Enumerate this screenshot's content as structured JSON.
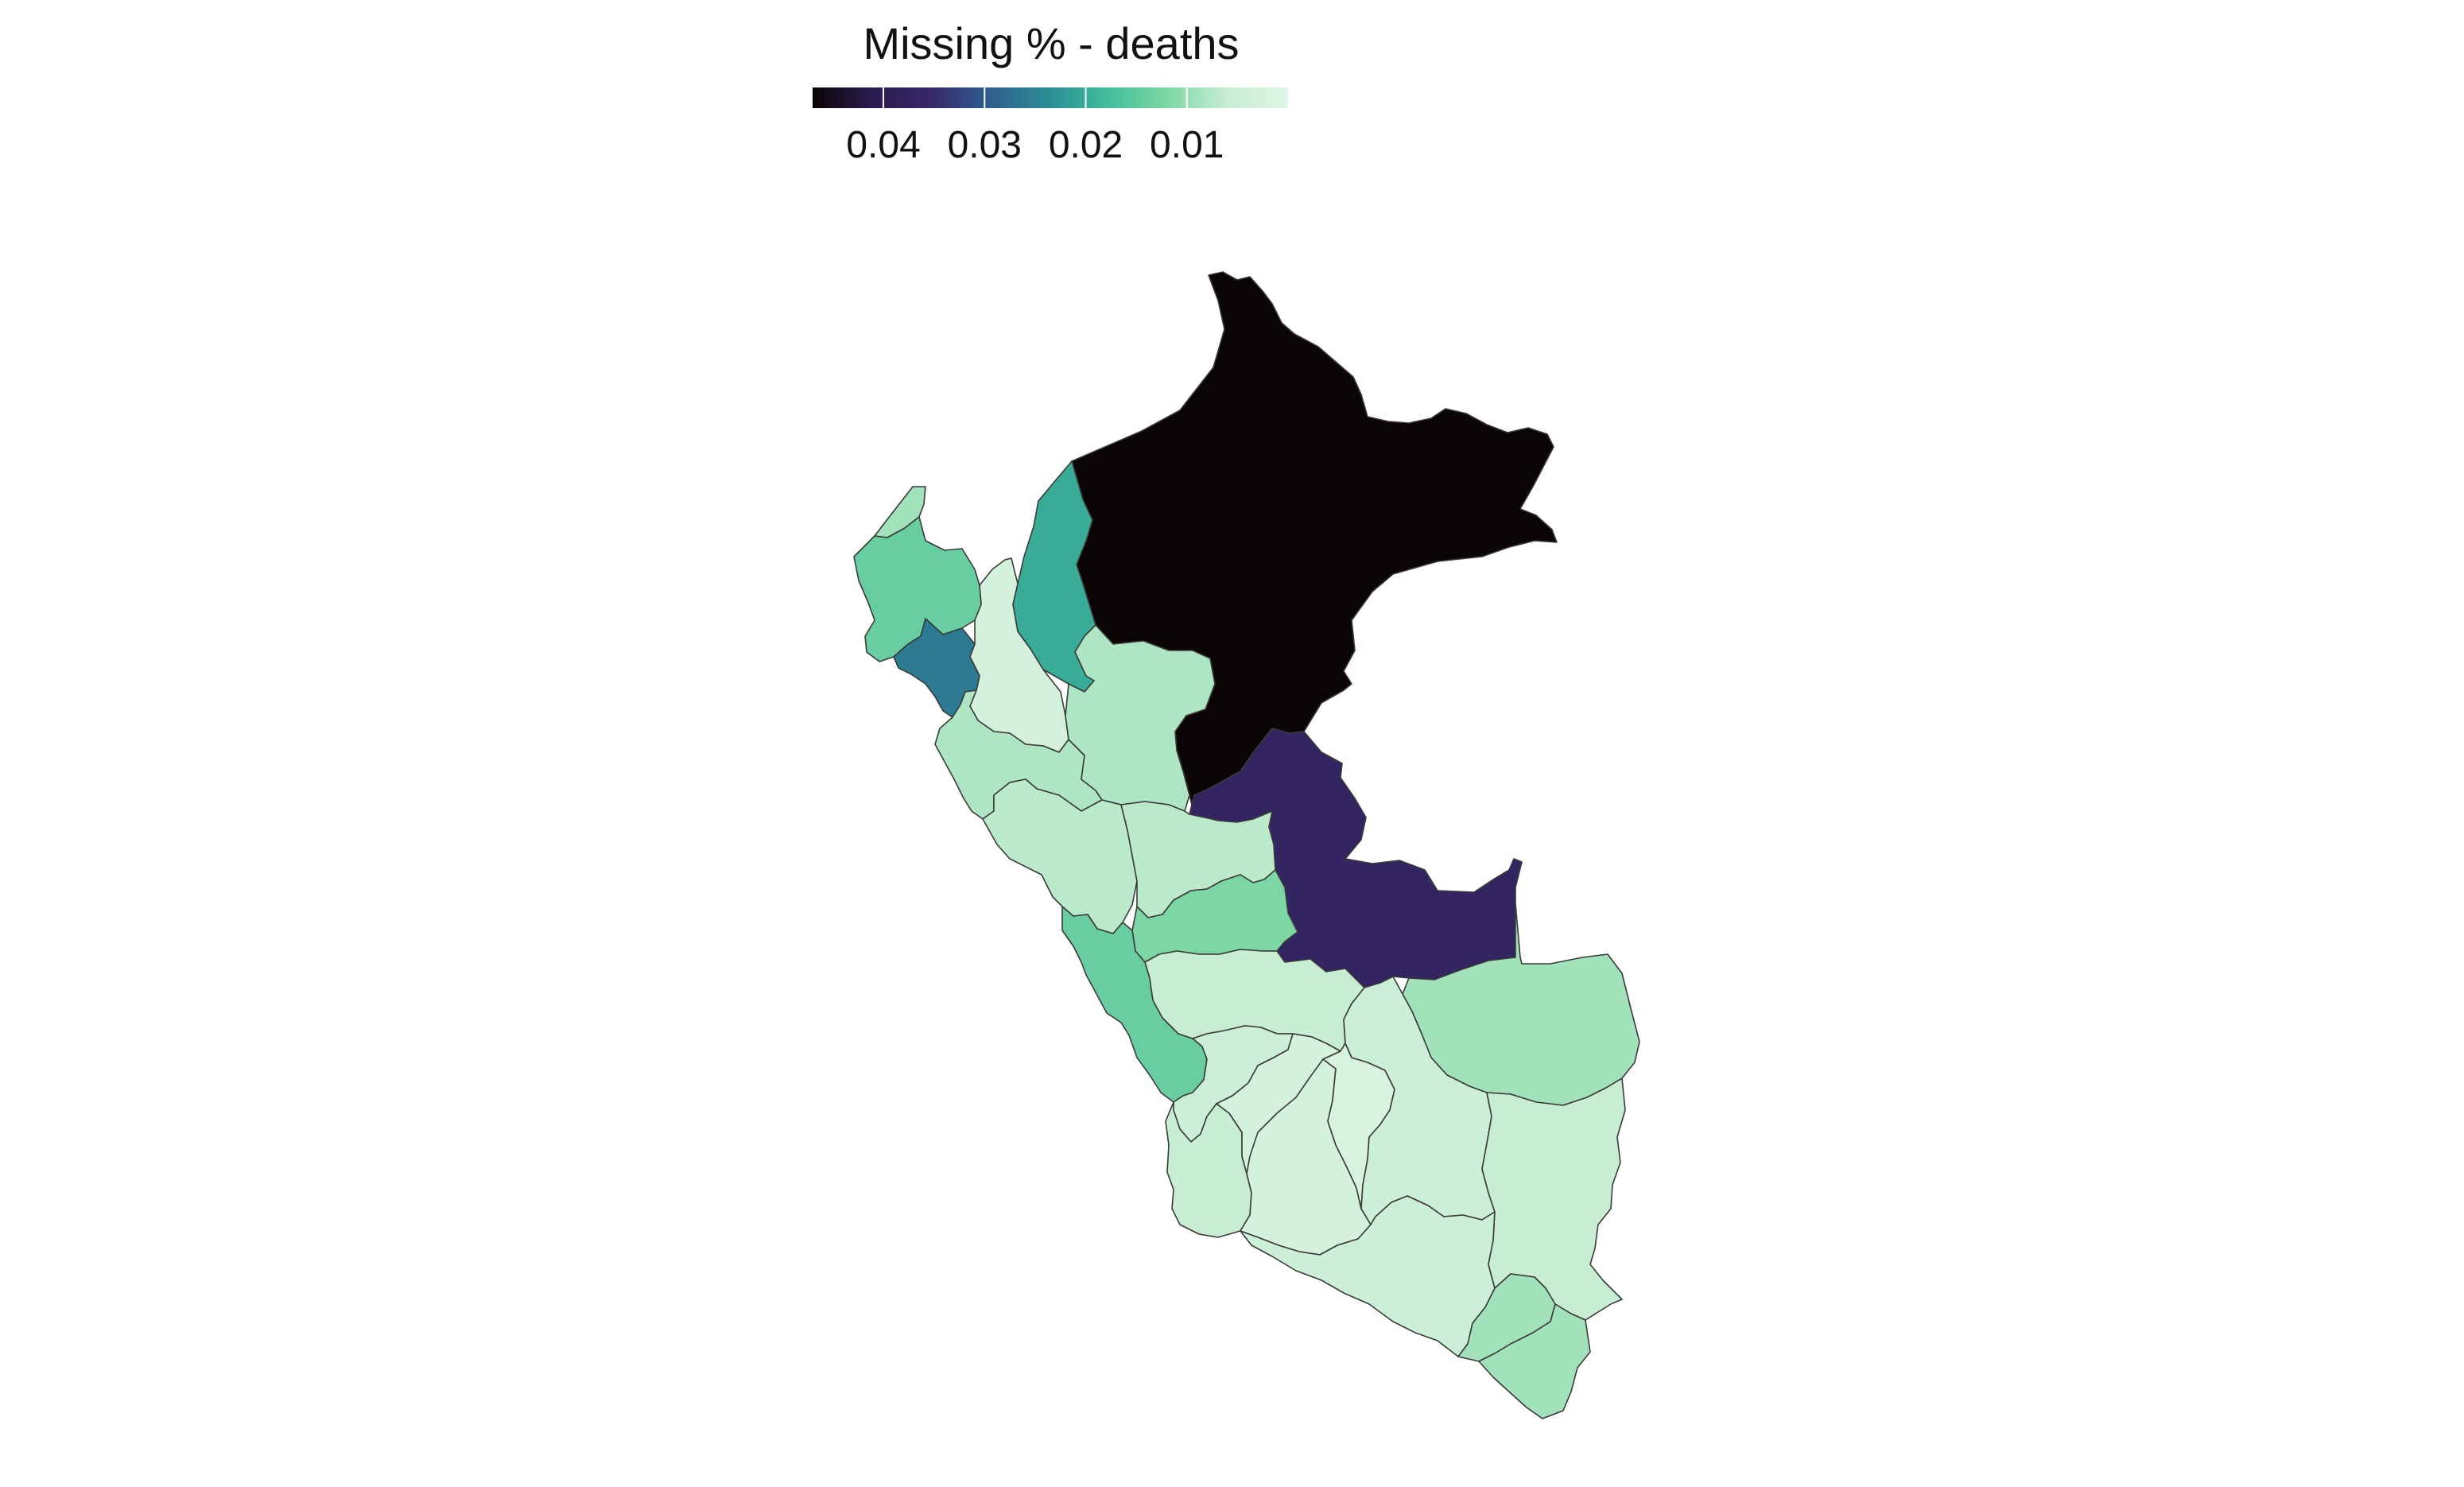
{
  "legend": {
    "title": "Missing % - deaths",
    "ticks": [
      {
        "value": 0.04,
        "label": "0.04"
      },
      {
        "value": 0.03,
        "label": "0.03"
      },
      {
        "value": 0.02,
        "label": "0.02"
      },
      {
        "value": 0.01,
        "label": "0.01"
      }
    ],
    "domain": [
      0.0,
      0.047
    ],
    "reversed": true,
    "palette": [
      "#0b0405",
      "#2b1c4f",
      "#37286a",
      "#2f5f8f",
      "#2a8f96",
      "#43bf9a",
      "#7fd8a5",
      "#c9eed4",
      "#def5e5"
    ]
  },
  "chart_data": {
    "type": "choropleth",
    "variable": "Missing % - deaths",
    "regions": [
      {
        "id": "loreto",
        "value": 0.047
      },
      {
        "id": "ucayali",
        "value": 0.037
      },
      {
        "id": "lambayeque",
        "value": 0.026
      },
      {
        "id": "amazonas",
        "value": 0.02
      },
      {
        "id": "piura",
        "value": 0.014
      },
      {
        "id": "tumbes",
        "value": 0.009
      },
      {
        "id": "cajamarca",
        "value": 0.003
      },
      {
        "id": "san-martin",
        "value": 0.008
      },
      {
        "id": "la-libertad",
        "value": 0.008
      },
      {
        "id": "ancash",
        "value": 0.007
      },
      {
        "id": "huanuco",
        "value": 0.007
      },
      {
        "id": "pasco",
        "value": 0.012
      },
      {
        "id": "lima",
        "value": 0.014
      },
      {
        "id": "junin",
        "value": 0.006
      },
      {
        "id": "madre-de-dios",
        "value": 0.009
      },
      {
        "id": "huancavelica",
        "value": 0.005
      },
      {
        "id": "ica",
        "value": 0.006
      },
      {
        "id": "ayacucho",
        "value": 0.003
      },
      {
        "id": "apurimac",
        "value": 0.002
      },
      {
        "id": "cusco",
        "value": 0.005
      },
      {
        "id": "arequipa",
        "value": 0.005
      },
      {
        "id": "puno",
        "value": 0.006
      },
      {
        "id": "moquegua",
        "value": 0.009
      },
      {
        "id": "tacna",
        "value": 0.009
      }
    ]
  }
}
